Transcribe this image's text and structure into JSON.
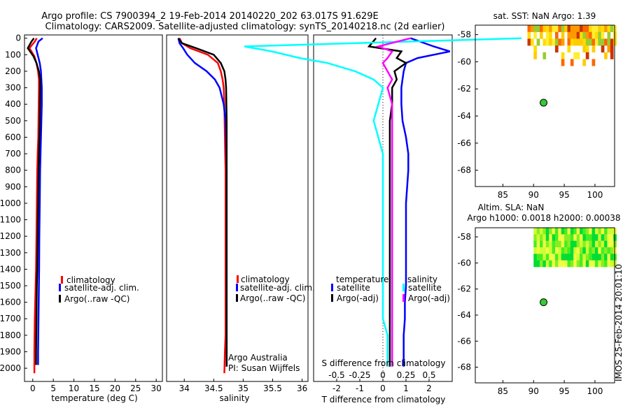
{
  "header": {
    "title_line1": "Argo profile: CS 7900394_2 19-Feb-2014 20140220_202 63.017S 91.629E",
    "title_line2": "Climatology: CARS2009. Satellite-adjusted climatology: synTS_20140218.nc (2d earlier)"
  },
  "footer": {
    "credit": "IMOS 25-Feb-2014 20:01:10"
  },
  "colors": {
    "climatology": "#ff0000",
    "satellite_adj": "#0000ff",
    "argo": "#000000",
    "temp_satellite": "#0000ff",
    "temp_argo_adj": "#000000",
    "sal_satellite": "#00ffff",
    "sal_argo_adj": "#ff00ff",
    "float_marker": "#33cc33"
  },
  "chart_data": [
    {
      "type": "line",
      "xlabel": "temperature (deg C)",
      "xlim": [
        -2,
        31.5
      ],
      "xticks": [
        0,
        5,
        10,
        15,
        20,
        25,
        30
      ],
      "ylim": [
        2080,
        -20
      ],
      "yticks": [
        0,
        100,
        200,
        300,
        400,
        500,
        600,
        700,
        800,
        900,
        1000,
        1100,
        1200,
        1300,
        1400,
        1500,
        1600,
        1700,
        1800,
        1900,
        2000
      ],
      "legend": [
        "climatology",
        "satellite-adj. clim.",
        "Argo(..raw -QC)"
      ],
      "series": [
        {
          "name": "climatology",
          "color": "#ff0000",
          "x": [
            1.0,
            0.5,
            -0.8,
            0.4,
            0.9,
            1.3,
            1.5,
            1.5,
            1.45,
            1.4,
            1.35,
            1.2,
            1.1,
            1.0,
            0.9,
            0.8,
            0.7,
            0.6,
            0.5,
            0.45,
            0.4,
            0.4
          ],
          "y": [
            0,
            20,
            60,
            110,
            150,
            200,
            250,
            300,
            400,
            500,
            600,
            700,
            800,
            1000,
            1200,
            1400,
            1500,
            1600,
            1700,
            1800,
            1900,
            2030
          ]
        },
        {
          "name": "satellite-adj. clim.",
          "color": "#0000ff",
          "x": [
            2.4,
            1.4,
            0.8,
            1.3,
            1.7,
            2.0,
            2.1,
            2.2,
            2.2,
            2.1,
            2.0,
            1.9,
            1.8,
            1.7,
            1.6,
            1.55,
            1.5,
            1.45,
            1.4,
            1.35,
            1.3,
            1.3
          ],
          "y": [
            0,
            20,
            60,
            110,
            150,
            200,
            250,
            300,
            400,
            500,
            600,
            700,
            800,
            1000,
            1200,
            1400,
            1500,
            1600,
            1700,
            1800,
            1900,
            1980
          ]
        },
        {
          "name": "Argo(..raw -QC)",
          "color": "#000000",
          "x": [
            0.3,
            -0.3,
            -1.2,
            0.2,
            0.9,
            1.5,
            1.8,
            1.8,
            1.75,
            1.7,
            1.6,
            1.5,
            1.4,
            1.3,
            1.2,
            1.1,
            1.0,
            0.95,
            0.9,
            0.85,
            0.8,
            0.8
          ],
          "y": [
            0,
            20,
            60,
            110,
            150,
            200,
            250,
            300,
            400,
            500,
            600,
            700,
            800,
            1000,
            1200,
            1400,
            1500,
            1600,
            1700,
            1800,
            1900,
            1980
          ]
        }
      ]
    },
    {
      "type": "line",
      "xlabel": "salinity",
      "xlim": [
        33.7,
        36.1
      ],
      "xticks": [
        34,
        34.5,
        35,
        35.5,
        36
      ],
      "ylim": [
        2080,
        -20
      ],
      "legend": [
        "climatology",
        "satellite-adj. clim.",
        "Argo(..raw -QC)"
      ],
      "annotations": [
        "Argo Australia",
        "PI: Susan Wijffels"
      ],
      "series": [
        {
          "name": "climatology",
          "color": "#ff0000",
          "x": [
            33.92,
            33.96,
            34.1,
            34.4,
            34.57,
            34.62,
            34.65,
            34.67,
            34.68,
            34.685,
            34.69,
            34.695,
            34.7,
            34.7,
            34.7,
            34.7,
            34.7,
            34.7,
            34.7,
            34.7,
            34.69,
            34.68
          ],
          "y": [
            0,
            30,
            60,
            100,
            150,
            200,
            250,
            300,
            400,
            500,
            600,
            700,
            800,
            1000,
            1200,
            1400,
            1500,
            1600,
            1700,
            1800,
            1900,
            2030
          ]
        },
        {
          "name": "satellite-adj. clim.",
          "color": "#0000ff",
          "x": [
            33.9,
            33.92,
            33.98,
            34.05,
            34.18,
            34.38,
            34.52,
            34.6,
            34.67,
            34.7,
            34.71,
            34.715,
            34.72,
            34.72,
            34.72,
            34.72,
            34.72,
            34.72,
            34.72,
            34.72,
            34.72,
            34.72
          ],
          "y": [
            0,
            30,
            60,
            100,
            150,
            200,
            250,
            300,
            400,
            500,
            600,
            700,
            800,
            1000,
            1200,
            1400,
            1500,
            1600,
            1700,
            1800,
            1900,
            1990
          ]
        },
        {
          "name": "Argo(..raw -QC)",
          "color": "#000000",
          "x": [
            33.9,
            33.96,
            34.2,
            34.5,
            34.62,
            34.68,
            34.7,
            34.71,
            34.715,
            34.72,
            34.72,
            34.72,
            34.72,
            34.72,
            34.72,
            34.72,
            34.72,
            34.72,
            34.72,
            34.72,
            34.72,
            34.72
          ],
          "y": [
            0,
            30,
            60,
            100,
            150,
            200,
            250,
            300,
            400,
            500,
            600,
            700,
            800,
            1000,
            1200,
            1400,
            1500,
            1600,
            1700,
            1800,
            1900,
            1990
          ]
        }
      ]
    },
    {
      "type": "line",
      "xlabel": "T difference from climatology",
      "xlabel_top": "S difference from climatology",
      "xlim": [
        -3,
        3
      ],
      "xticks": [
        -2,
        -1,
        0,
        1,
        2
      ],
      "xlim_s": [
        -0.75,
        0.75
      ],
      "xticks_s": [
        -0.5,
        -0.25,
        0,
        0.25,
        0.5
      ],
      "ylim": [
        2080,
        -20
      ],
      "legend": {
        "temperature_title": "temperature",
        "salinity_title": "salinity",
        "temperature_items": [
          "satellite",
          "Argo(-adj)"
        ],
        "salinity_items": [
          "satellite",
          "Argo(-adj)"
        ]
      },
      "series": [
        {
          "name": "satellite",
          "color": "#0000ff",
          "x": [
            1.2,
            2.2,
            2.9,
            1.5,
            1.0,
            0.9,
            0.85,
            0.8,
            0.8,
            0.85,
            1.0,
            1.1,
            1.1,
            1.0,
            1.0,
            1.0,
            1.0,
            0.95,
            0.95,
            0.9,
            0.9,
            0.9
          ],
          "y": [
            0,
            50,
            80,
            120,
            150,
            200,
            250,
            300,
            400,
            500,
            600,
            700,
            800,
            1000,
            1200,
            1400,
            1500,
            1600,
            1700,
            1800,
            1900,
            1990
          ]
        },
        {
          "name": "Argo(-adj)",
          "color": "#000000",
          "x": [
            -0.3,
            -0.6,
            0.8,
            0.6,
            1.0,
            0.5,
            0.6,
            0.4,
            0.4,
            0.3,
            0.3,
            0.3,
            0.3,
            0.3,
            0.3,
            0.3,
            0.3,
            0.3,
            0.3,
            0.3,
            0.3,
            0.3
          ],
          "y": [
            0,
            50,
            80,
            120,
            150,
            200,
            250,
            300,
            400,
            500,
            600,
            700,
            800,
            1000,
            1200,
            1400,
            1500,
            1600,
            1700,
            1800,
            1900,
            1990
          ]
        },
        {
          "name": "satellite",
          "color": "#00ffff",
          "x": [
            1.5,
            -1.5,
            -1.2,
            -0.9,
            -0.6,
            -0.3,
            -0.1,
            0.0,
            -0.05,
            -0.1,
            -0.05,
            0.0,
            0.0,
            0.0,
            0.0,
            0.0,
            0.0,
            0.0,
            0.0,
            0.05,
            0.05,
            0.05
          ],
          "y": [
            0,
            50,
            80,
            120,
            150,
            200,
            250,
            300,
            400,
            500,
            600,
            700,
            800,
            1000,
            1200,
            1400,
            1500,
            1600,
            1700,
            1800,
            1900,
            1990
          ]
        },
        {
          "name": "Argo(-adj)",
          "color": "#ff00ff",
          "x": [
            0.3,
            -0.05,
            0.1,
            0.05,
            0.0,
            0.05,
            0.1,
            0.05,
            0.1,
            0.1,
            0.1,
            0.1,
            0.1,
            0.1,
            0.1,
            0.1,
            0.1,
            0.1,
            0.1,
            0.1,
            0.1,
            0.1
          ],
          "y": [
            0,
            50,
            80,
            120,
            150,
            200,
            250,
            300,
            400,
            500,
            600,
            700,
            800,
            1000,
            1200,
            1400,
            1500,
            1600,
            1700,
            1800,
            1900,
            1990
          ]
        }
      ]
    },
    {
      "type": "heatmap",
      "title": "sat. SST: NaN Argo: 1.39",
      "xlim": [
        80.5,
        103.2
      ],
      "ylim": [
        -69.2,
        -57.3
      ],
      "xticks": [
        85,
        90,
        95,
        100
      ],
      "yticks": [
        -58,
        -60,
        -62,
        -64,
        -66,
        -68
      ],
      "cell_colors": [
        "#ffcc00",
        "#ff9900",
        "#ffee33",
        "#99cc33",
        "#cc3300",
        "#ff6600",
        "#ffdd00"
      ],
      "argo_position": {
        "lon": 91.629,
        "lat": -63.017
      }
    },
    {
      "type": "heatmap",
      "title": "Altim. SLA: NaN",
      "subtitle": "Argo h1000: 0.0018 h2000: 0.00038",
      "xlim": [
        80.5,
        103.2
      ],
      "ylim": [
        -69.2,
        -57.3
      ],
      "xticks": [
        85,
        90,
        95,
        100
      ],
      "yticks": [
        -58,
        -60,
        -62,
        -64,
        -66,
        -68
      ],
      "cell_colors": [
        "#00dd33",
        "#44ee22",
        "#ccff33",
        "#88ee22",
        "#eeff44"
      ],
      "argo_position": {
        "lon": 91.629,
        "lat": -63.017
      }
    }
  ]
}
